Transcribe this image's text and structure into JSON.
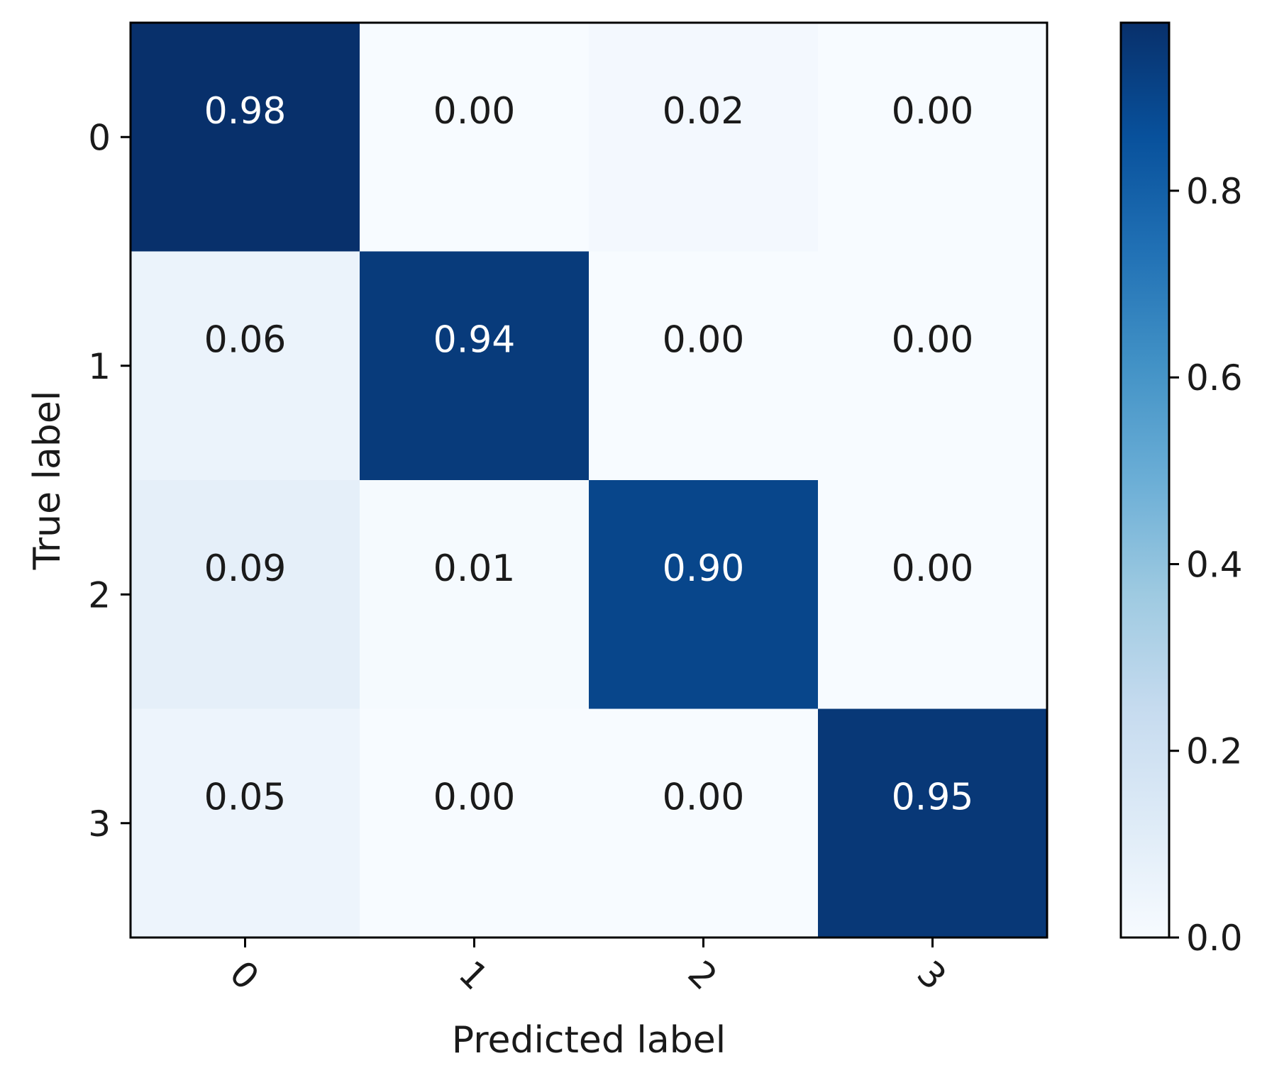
{
  "chart_data": {
    "type": "heatmap",
    "title": "",
    "xlabel": "Predicted label",
    "ylabel": "True label",
    "x_categories": [
      "0",
      "1",
      "2",
      "3"
    ],
    "y_categories": [
      "0",
      "1",
      "2",
      "3"
    ],
    "values": [
      [
        0.98,
        0.0,
        0.02,
        0.0
      ],
      [
        0.06,
        0.94,
        0.0,
        0.0
      ],
      [
        0.09,
        0.01,
        0.9,
        0.0
      ],
      [
        0.05,
        0.0,
        0.0,
        0.95
      ]
    ],
    "cell_labels": [
      [
        "0.98",
        "0.00",
        "0.02",
        "0.00"
      ],
      [
        "0.06",
        "0.94",
        "0.00",
        "0.00"
      ],
      [
        "0.09",
        "0.01",
        "0.90",
        "0.00"
      ],
      [
        "0.05",
        "0.00",
        "0.00",
        "0.95"
      ]
    ],
    "colormap": "Blues",
    "colormap_stops": [
      "#f7fbff",
      "#deebf7",
      "#c6dbef",
      "#9ecae1",
      "#6baed6",
      "#4292c6",
      "#2171b5",
      "#08519c",
      "#08306b"
    ],
    "label_threshold": 0.49,
    "label_color_light": "#ffffff",
    "label_color_dark": "#1a1a1a",
    "colorbar": {
      "range": [
        0,
        0.98
      ],
      "ticks": [
        0.0,
        0.2,
        0.4,
        0.6,
        0.8
      ],
      "tick_labels": [
        "0.0",
        "0.2",
        "0.4",
        "0.6",
        "0.8"
      ]
    },
    "grid": false,
    "x_tick_rotation_deg": 45
  }
}
